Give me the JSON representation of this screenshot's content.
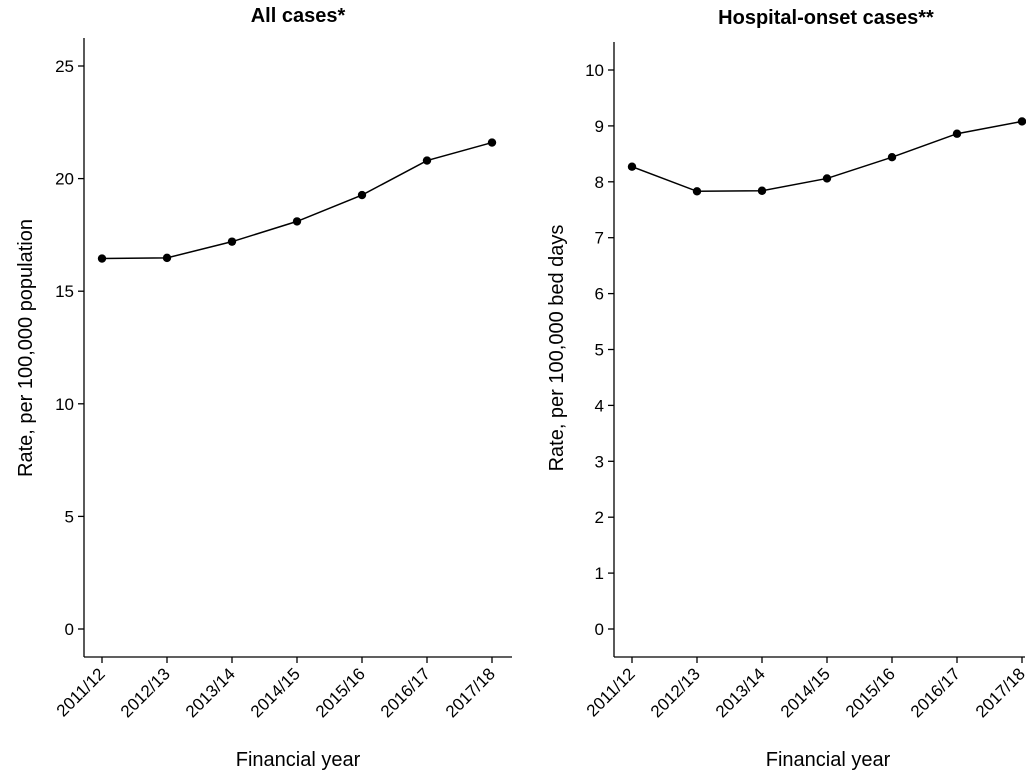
{
  "chart_data": [
    {
      "type": "line",
      "title": "All cases*",
      "xlabel": "Financial year",
      "ylabel": "Rate, per 100,000 population",
      "categories": [
        "2011/12",
        "2012/13",
        "2013/14",
        "2014/15",
        "2015/16",
        "2016/17",
        "2017/18"
      ],
      "values": [
        16.45,
        16.48,
        17.2,
        18.1,
        19.27,
        20.8,
        21.6
      ],
      "ylim": [
        0,
        25
      ],
      "yticks": [
        0,
        5,
        10,
        15,
        20,
        25
      ],
      "grid": false,
      "color": "#000000"
    },
    {
      "type": "line",
      "title": "Hospital-onset cases**",
      "xlabel": "Financial year",
      "ylabel": "Rate, per 100,000 bed days",
      "categories": [
        "2011/12",
        "2012/13",
        "2013/14",
        "2014/15",
        "2015/16",
        "2016/17",
        "2017/18"
      ],
      "values": [
        8.27,
        7.83,
        7.84,
        8.06,
        8.44,
        8.86,
        9.08
      ],
      "ylim": [
        0,
        10
      ],
      "yticks": [
        0,
        1,
        2,
        3,
        4,
        5,
        6,
        7,
        8,
        9,
        10
      ],
      "grid": false,
      "color": "#000000"
    }
  ]
}
